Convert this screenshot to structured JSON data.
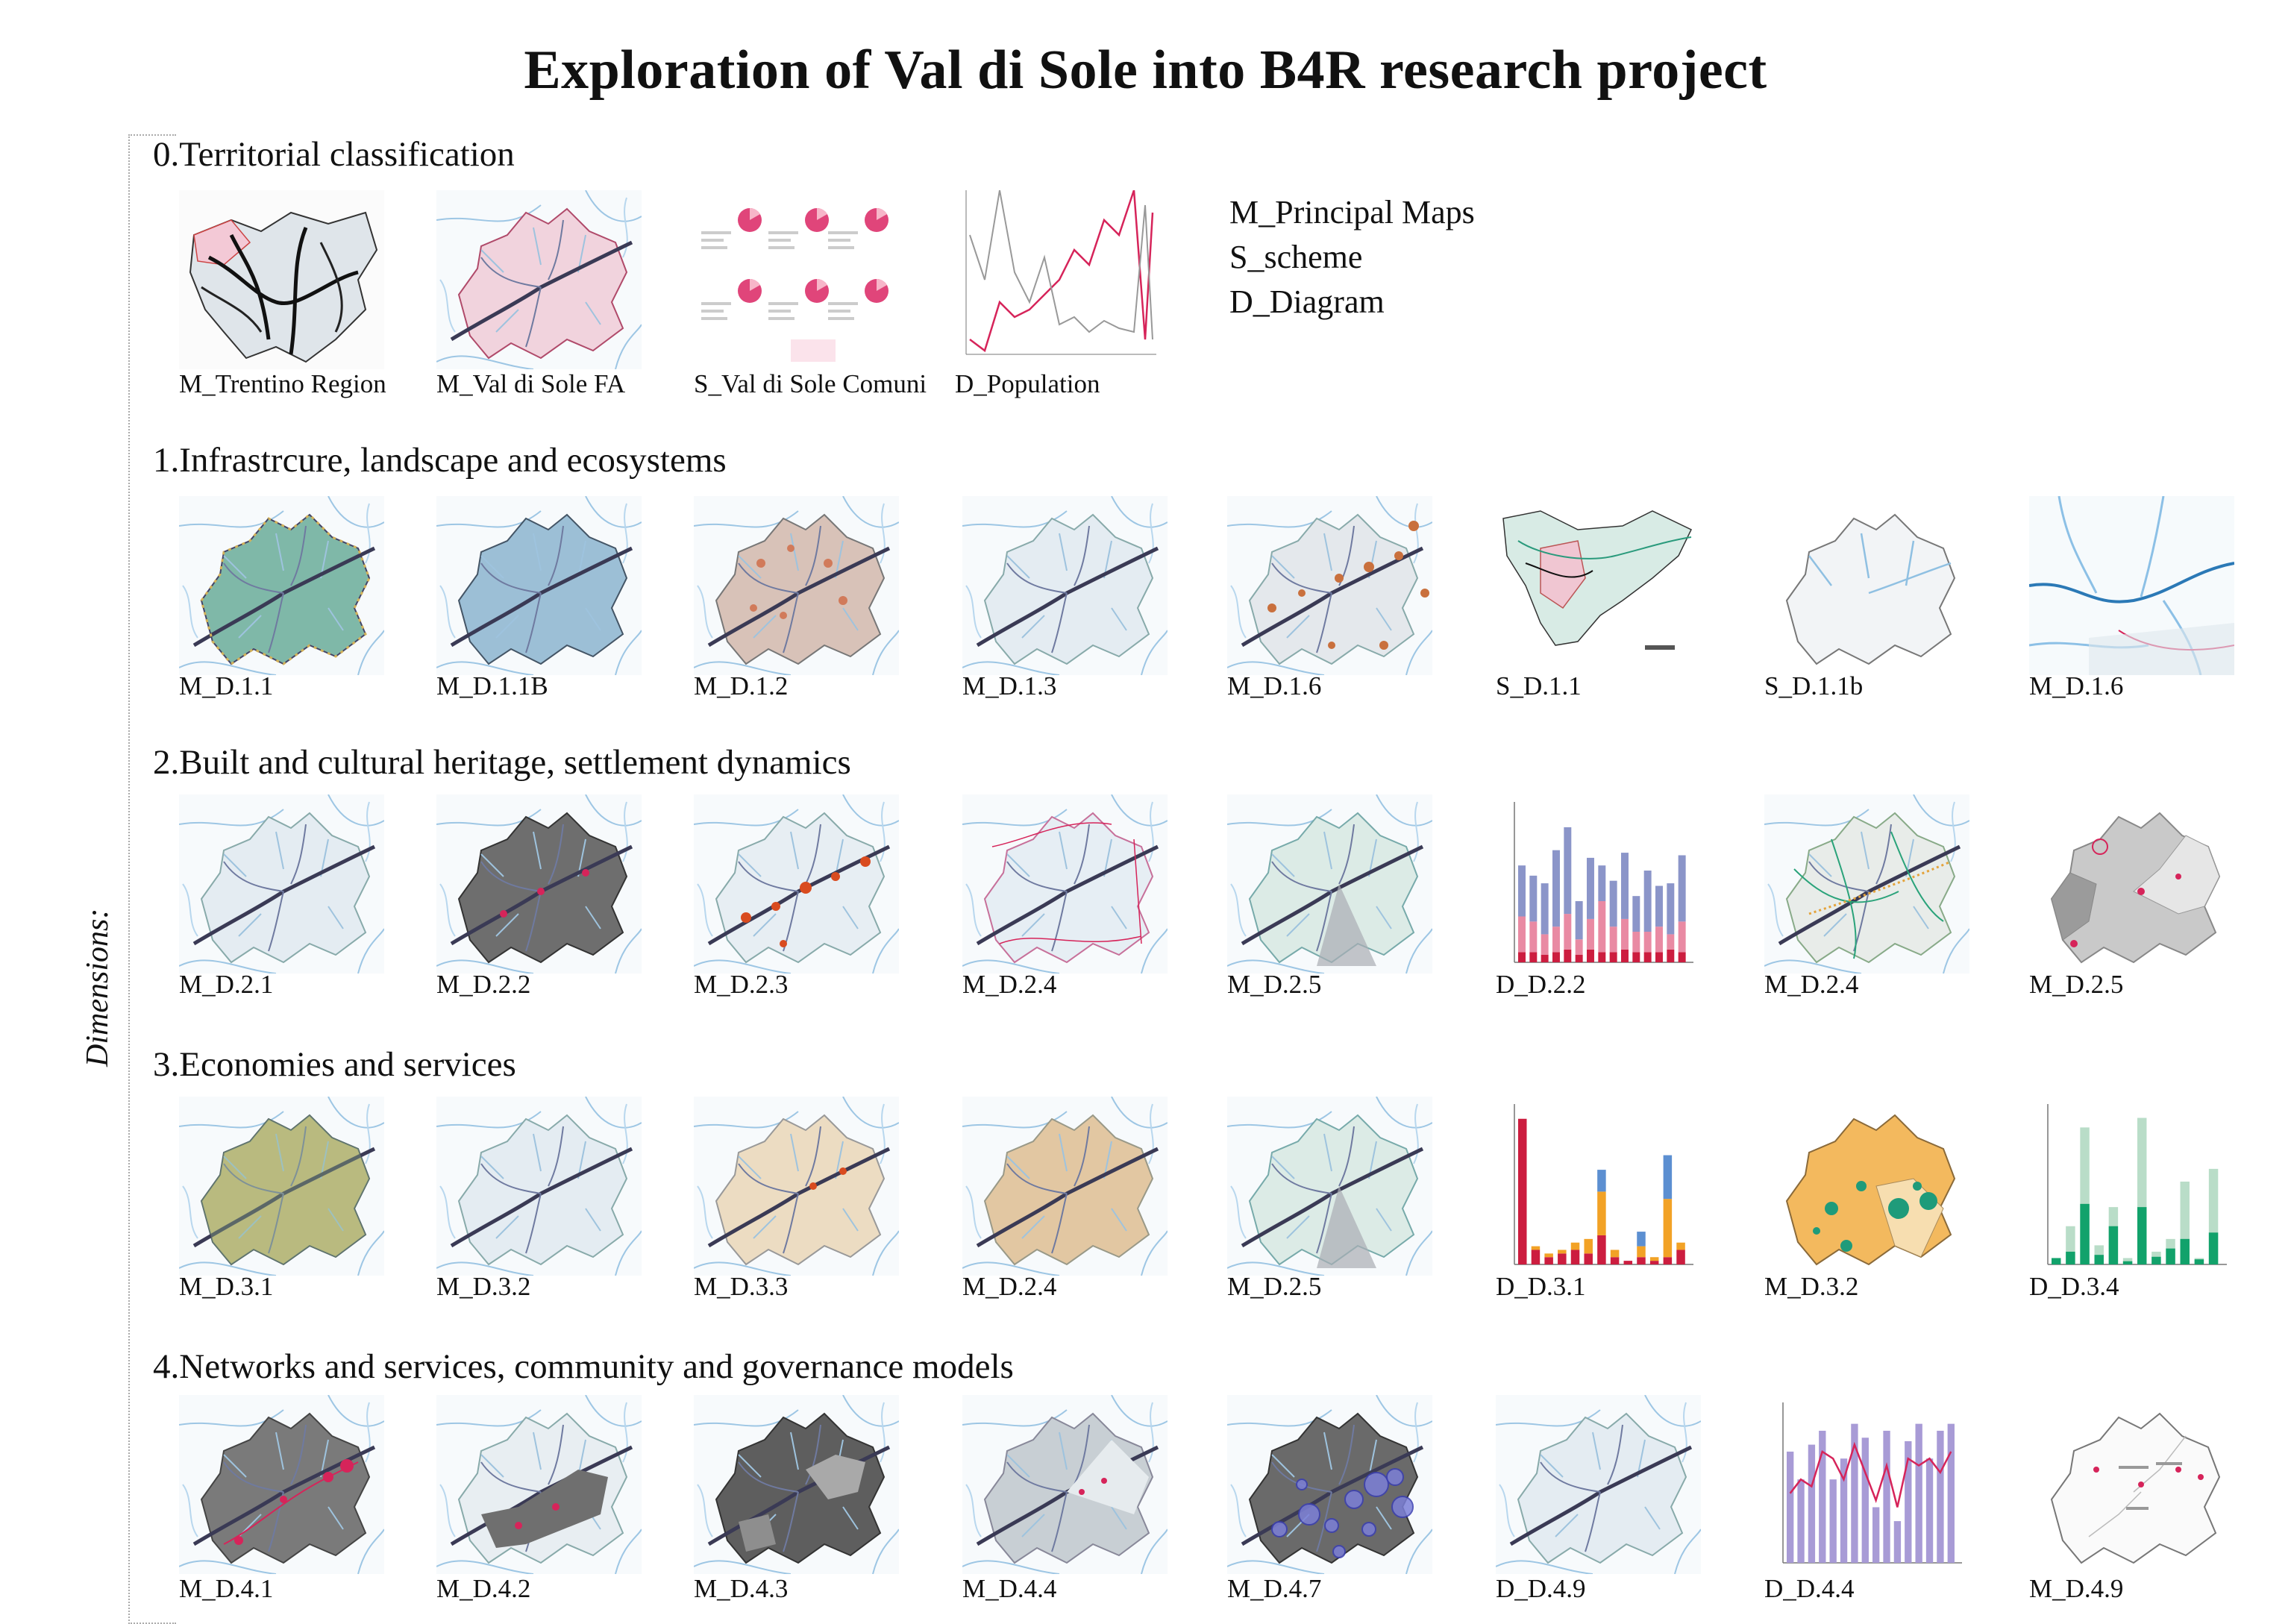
{
  "title": "Exploration of Val di Sole into B4R research project",
  "dimensions_label": "Dimensions:",
  "legend": [
    "M_Principal Maps",
    "S_scheme",
    "D_Diagram"
  ],
  "colors": {
    "accent": "#d6245a",
    "water": "#5aa6d8",
    "grey": "#6e6e6e"
  },
  "sections": [
    {
      "title": "0.Territorial classification",
      "items": [
        {
          "caption": "M_Trentino Region",
          "kind": "trentino"
        },
        {
          "caption": "M_Val di Sole FA",
          "kind": "pinkmap"
        },
        {
          "caption": "S_Val di Sole Comuni",
          "kind": "pies"
        },
        {
          "caption": "D_Population",
          "kind": "popline"
        }
      ]
    },
    {
      "title": "1.Infrastrcure, landscape and ecosystems",
      "items": [
        {
          "caption": "M_D.1.1",
          "kind": "teal"
        },
        {
          "caption": "M_D.1.1B",
          "kind": "blue"
        },
        {
          "caption": "M_D.1.2",
          "kind": "salmon"
        },
        {
          "caption": "M_D.1.3",
          "kind": "pale"
        },
        {
          "caption": "M_D.1.6",
          "kind": "dots"
        },
        {
          "caption": "S_D.1.1",
          "kind": "scheme"
        },
        {
          "caption": "S_D.1.1b",
          "kind": "outline"
        },
        {
          "caption": "M_D.1.6",
          "kind": "rivers"
        }
      ]
    },
    {
      "title": "2.Built and cultural heritage, settlement dynamics",
      "items": [
        {
          "caption": "M_D.2.1",
          "kind": "pale"
        },
        {
          "caption": "M_D.2.2",
          "kind": "darkgrey"
        },
        {
          "caption": "M_D.2.3",
          "kind": "redspots"
        },
        {
          "caption": "M_D.2.4",
          "kind": "pinkroads"
        },
        {
          "caption": "M_D.2.5",
          "kind": "greenish"
        },
        {
          "caption": "D_D.2.2",
          "kind": "pinkbars"
        },
        {
          "caption": "M_D.2.4",
          "kind": "greenroads"
        },
        {
          "caption": "M_D.2.5",
          "kind": "greyzones"
        }
      ]
    },
    {
      "title": "3.Economies and services",
      "items": [
        {
          "caption": "M_D.3.1",
          "kind": "ochre"
        },
        {
          "caption": "M_D.3.2",
          "kind": "pale"
        },
        {
          "caption": "M_D.3.3",
          "kind": "beige"
        },
        {
          "caption": "M_D.2.4",
          "kind": "tan"
        },
        {
          "caption": "M_D.2.5",
          "kind": "greenish"
        },
        {
          "caption": "D_D.3.1",
          "kind": "stackbars"
        },
        {
          "caption": "M_D.3.2",
          "kind": "orangemap"
        },
        {
          "caption": "D_D.3.4",
          "kind": "greenbars"
        }
      ]
    },
    {
      "title": "4.Networks and services, community and governance models",
      "items": [
        {
          "caption": "M_D.4.1",
          "kind": "greydots"
        },
        {
          "caption": "M_D.4.2",
          "kind": "greypart"
        },
        {
          "caption": "M_D.4.3",
          "kind": "greyblocks"
        },
        {
          "caption": "M_D.4.4",
          "kind": "lightgrey"
        },
        {
          "caption": "M_D.4.7",
          "kind": "circles"
        },
        {
          "caption": "D_D.4.9",
          "kind": "pale"
        },
        {
          "caption": "D_D.4.4",
          "kind": "purplebars"
        },
        {
          "caption": "M_D.4.9",
          "kind": "whiteoutline"
        }
      ]
    }
  ]
}
